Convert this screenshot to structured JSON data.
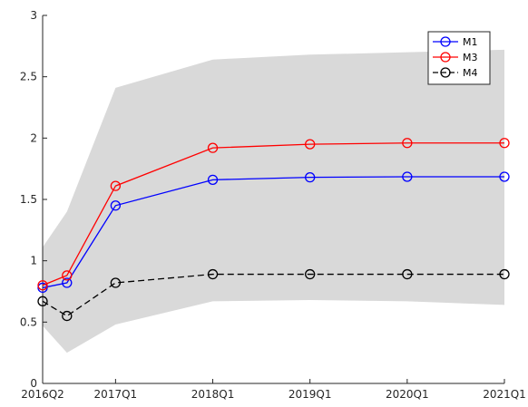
{
  "chart_data": {
    "type": "line",
    "x": [
      2016.25,
      2016.5,
      2017.0,
      2018.0,
      2019.0,
      2020.0,
      2021.0
    ],
    "x_ticks": [
      {
        "value": 2016.25,
        "label": "2016Q2"
      },
      {
        "value": 2017.0,
        "label": "2017Q1"
      },
      {
        "value": 2018.0,
        "label": "2018Q1"
      },
      {
        "value": 2019.0,
        "label": "2019Q1"
      },
      {
        "value": 2020.0,
        "label": "2020Q1"
      },
      {
        "value": 2021.0,
        "label": "2021Q1"
      }
    ],
    "xlim": [
      2016.25,
      2021.0
    ],
    "ylim": [
      0,
      3
    ],
    "y_ticks": [
      {
        "value": 0,
        "label": "0"
      },
      {
        "value": 0.5,
        "label": "0.5"
      },
      {
        "value": 1,
        "label": "1"
      },
      {
        "value": 1.5,
        "label": "1.5"
      },
      {
        "value": 2,
        "label": "2"
      },
      {
        "value": 2.5,
        "label": "2.5"
      },
      {
        "value": 3,
        "label": "3"
      }
    ],
    "band": {
      "color": "#d9d9d9",
      "upper": [
        1.11,
        1.4,
        2.41,
        2.64,
        2.68,
        2.7,
        2.72
      ],
      "lower": [
        0.47,
        0.25,
        0.48,
        0.67,
        0.68,
        0.67,
        0.64
      ]
    },
    "series": [
      {
        "name": "M1",
        "color": "#0000ff",
        "dash": false,
        "marker": "circle",
        "values": [
          0.78,
          0.82,
          1.45,
          1.66,
          1.68,
          1.685,
          1.685
        ]
      },
      {
        "name": "M3",
        "color": "#ff0000",
        "dash": false,
        "marker": "circle",
        "values": [
          0.8,
          0.88,
          1.61,
          1.92,
          1.95,
          1.96,
          1.96
        ]
      },
      {
        "name": "M4",
        "color": "#000000",
        "dash": true,
        "marker": "circle",
        "values": [
          0.67,
          0.55,
          0.82,
          0.89,
          0.89,
          0.89,
          0.89
        ]
      }
    ],
    "legend_position": "top-right",
    "grid": false,
    "title": "",
    "xlabel": "",
    "ylabel": ""
  }
}
